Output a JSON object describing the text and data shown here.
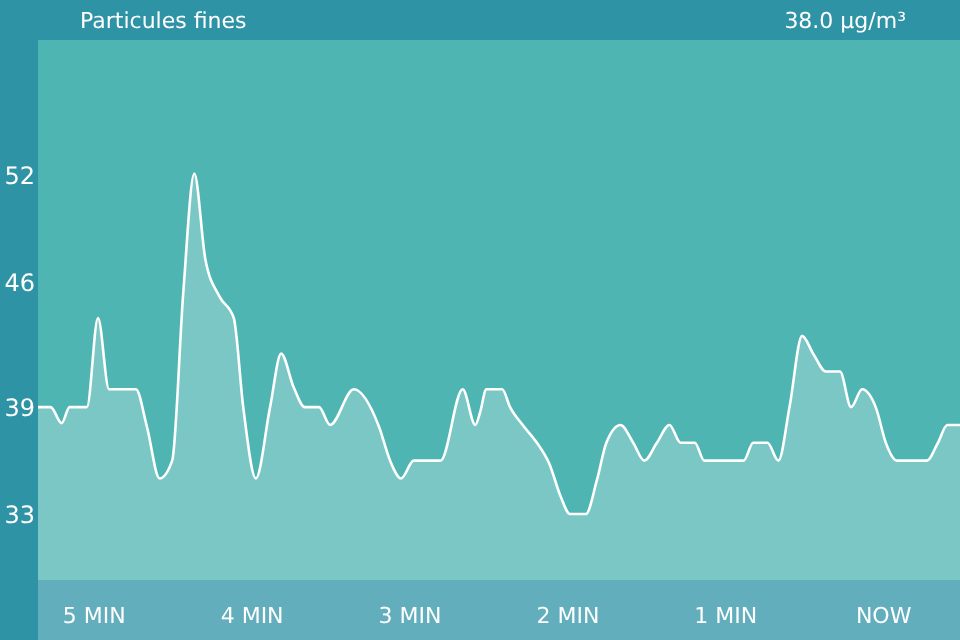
{
  "chart_data": {
    "type": "area",
    "title": "Particules fines",
    "annotations": [
      "38.0 µg/m³"
    ],
    "x": [
      -5.35,
      -5.27,
      -5.2,
      -5.15,
      -5.04,
      -4.97,
      -4.9,
      -4.73,
      -4.66,
      -4.58,
      -4.5,
      -4.43,
      -4.36,
      -4.29,
      -4.2,
      -4.11,
      -4.05,
      -3.97,
      -3.88,
      -3.81,
      -3.73,
      -3.66,
      -3.57,
      -3.5,
      -3.35,
      -3.19,
      -3.12,
      -3.05,
      -2.97,
      -2.8,
      -2.66,
      -2.58,
      -2.55,
      -2.51,
      -2.41,
      -2.36,
      -2.28,
      -2.19,
      -2.11,
      -2.04,
      -1.98,
      -1.88,
      -1.81,
      -1.75,
      -1.66,
      -1.58,
      -1.51,
      -1.43,
      -1.35,
      -1.28,
      -1.19,
      -1.13,
      -0.88,
      -0.82,
      -0.73,
      -0.66,
      -0.59,
      -0.51,
      -0.44,
      -0.36,
      -0.27,
      -0.2,
      -0.13,
      -0.04,
      0.02,
      0.09,
      0.28,
      0.35,
      0.41,
      0.49
    ],
    "series": [
      {
        "color": "#ffffff",
        "values": [
          39.0,
          39.0,
          38.1,
          39.0,
          39.0,
          44.0,
          40.0,
          40.0,
          37.9,
          35.0,
          36.0,
          45.4,
          52.1,
          47.3,
          45.2,
          44.0,
          39.0,
          35.0,
          39.0,
          42.0,
          40.1,
          39.0,
          39.0,
          38.0,
          40.0,
          37.9,
          36.0,
          35.0,
          36.0,
          36.0,
          40.0,
          38.0,
          38.7,
          40.0,
          40.0,
          39.0,
          38.0,
          37.0,
          35.8,
          34.0,
          33.0,
          33.0,
          34.9,
          37.0,
          38.0,
          37.0,
          36.0,
          37.0,
          38.0,
          37.0,
          37.0,
          36.0,
          36.0,
          37.0,
          37.0,
          36.0,
          39.0,
          43.0,
          42.0,
          41.0,
          41.0,
          39.0,
          40.0,
          38.9,
          37.0,
          36.0,
          36.0,
          37.0,
          38.0,
          38.0
        ]
      }
    ],
    "xlim": [
      -5.35,
      0.49
    ],
    "xticks": [
      {
        "value": -5,
        "label": "5 MIN"
      },
      {
        "value": -4,
        "label": "4 MIN"
      },
      {
        "value": -3,
        "label": "3 MIN"
      },
      {
        "value": -2,
        "label": "2 MIN"
      },
      {
        "value": -1,
        "label": "1 MIN"
      },
      {
        "value": 0,
        "label": "NOW"
      }
    ],
    "ylim": [
      29.3,
      59.6
    ],
    "yticks": [
      33,
      39,
      46,
      52
    ],
    "grid": false,
    "marker": "none",
    "line_style": "solid"
  }
}
